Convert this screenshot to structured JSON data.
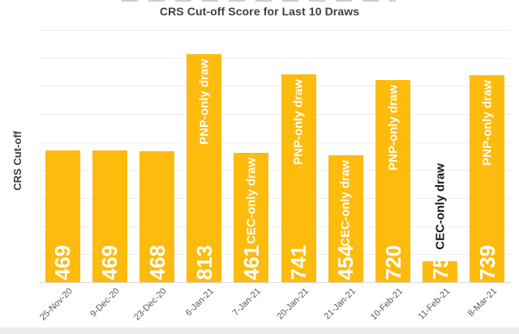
{
  "chart_data": {
    "type": "bar",
    "title": "CRS Cut-off Score for Last 10 Draws",
    "xlabel": "",
    "ylabel": "CRS Cut-off",
    "categories": [
      "25-Nov-20",
      "9-Dec-20",
      "23-Dec-20",
      "6-Jan-21",
      "7-Jan-21",
      "20-Jan-21",
      "21-Jan-21",
      "10-Feb-21",
      "11-Feb-21",
      "8-Mar-21"
    ],
    "values": [
      469,
      469,
      468,
      813,
      461,
      741,
      454,
      720,
      75,
      739
    ],
    "value_labels": {
      "visible": true,
      "position": "inside-base",
      "orientation": "vertical",
      "color": "#ffffff"
    },
    "bar_annotations": [
      {
        "index": 3,
        "text": "PNP-only draw",
        "placement": "inside-top",
        "color": "#ffffff"
      },
      {
        "index": 4,
        "text": "CEC-only draw",
        "placement": "inside-top",
        "color": "#ffffff"
      },
      {
        "index": 5,
        "text": "PNP-only draw",
        "placement": "inside-top",
        "color": "#ffffff"
      },
      {
        "index": 6,
        "text": "CEC-only draw",
        "placement": "inside-top",
        "color": "#ffffff"
      },
      {
        "index": 7,
        "text": "PNP-only draw",
        "placement": "inside-top",
        "color": "#ffffff"
      },
      {
        "index": 8,
        "text": "CEC-only draw",
        "placement": "above",
        "color": "#1a1a1a"
      },
      {
        "index": 9,
        "text": "PNP-only draw",
        "placement": "inside-top",
        "color": "#ffffff"
      }
    ],
    "ylim": [
      0,
      900
    ],
    "gridline_step": 100,
    "grid": "horizontal",
    "y_tick_labels": "none",
    "legend": "none",
    "x_label_rotation": -45,
    "bar_color": "#fdbb0d",
    "gridline_color": "#ededed",
    "axis_line_color": "#d9d9d9",
    "title_color": "#404040",
    "x_tick_color": "#595959"
  }
}
